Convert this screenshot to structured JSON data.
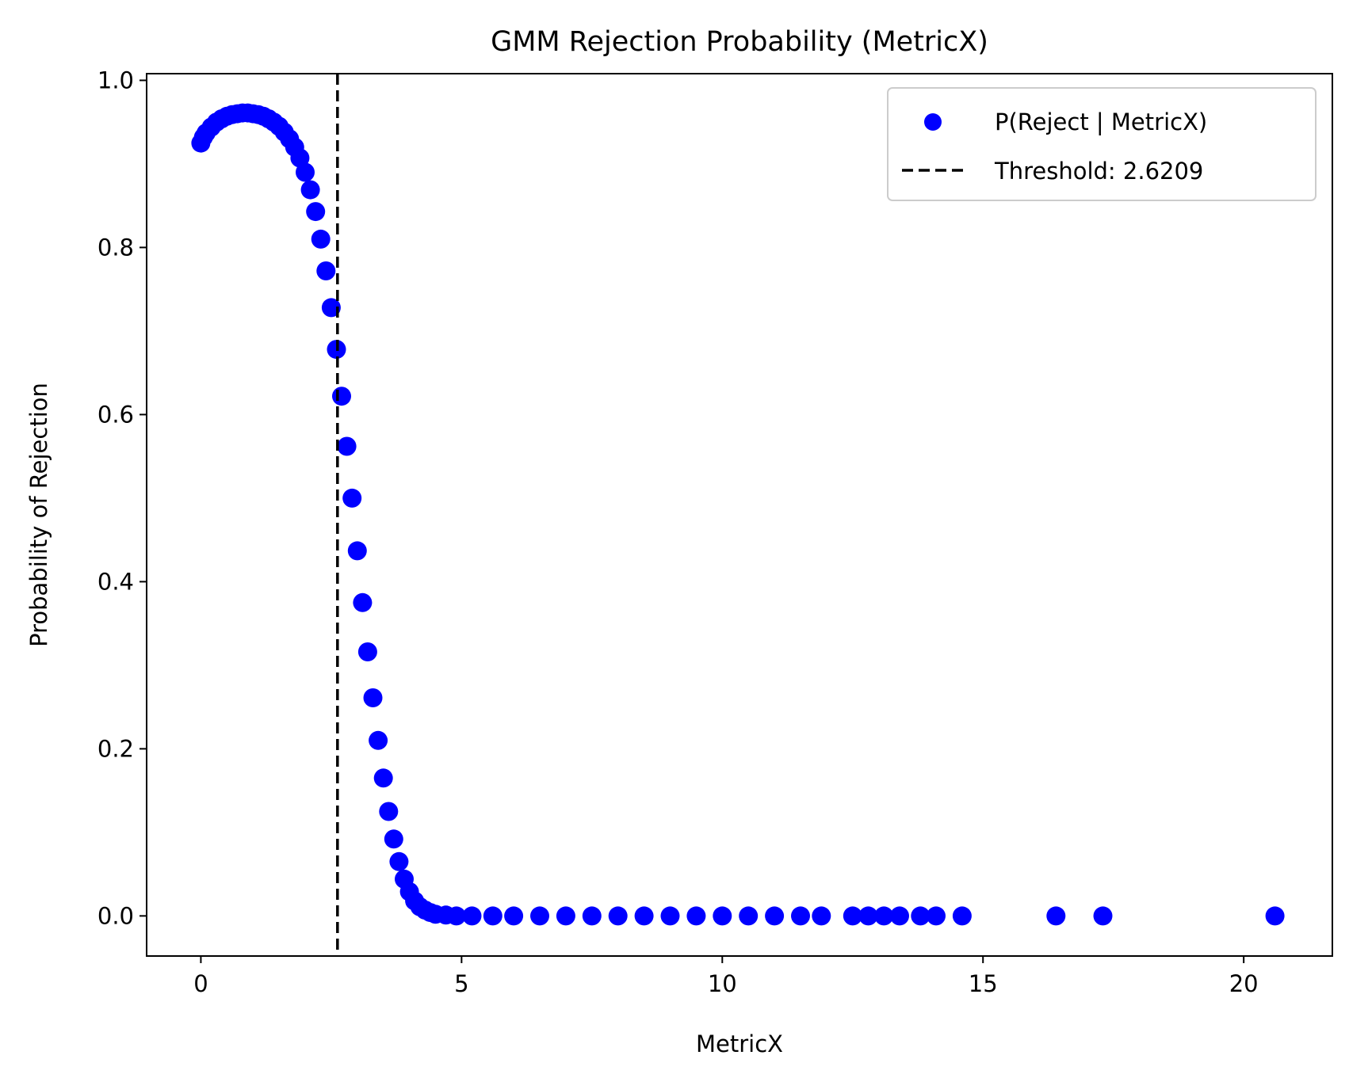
{
  "chart_data": {
    "type": "scatter",
    "title": "GMM Rejection Probability (MetricX)",
    "xlabel": "MetricX",
    "ylabel": "Probability of Rejection",
    "xlim": [
      -1.04,
      21.7
    ],
    "ylim": [
      -0.048,
      1.008
    ],
    "x_ticks": [
      0,
      5,
      10,
      15,
      20
    ],
    "x_tick_labels": [
      "0",
      "5",
      "10",
      "15",
      "20"
    ],
    "y_ticks": [
      0.0,
      0.2,
      0.4,
      0.6,
      0.8,
      1.0
    ],
    "y_tick_labels": [
      "0.0",
      "0.2",
      "0.4",
      "0.6",
      "0.8",
      "1.0"
    ],
    "grid": false,
    "legend_position": "top-right",
    "series": [
      {
        "name": "P(Reject | MetricX)",
        "kind": "scatter",
        "color": "#0000ff",
        "points": [
          [
            0.0,
            0.925
          ],
          [
            0.05,
            0.932
          ],
          [
            0.1,
            0.937
          ],
          [
            0.2,
            0.944
          ],
          [
            0.3,
            0.95
          ],
          [
            0.4,
            0.954
          ],
          [
            0.5,
            0.957
          ],
          [
            0.6,
            0.959
          ],
          [
            0.7,
            0.96
          ],
          [
            0.8,
            0.961
          ],
          [
            0.9,
            0.961
          ],
          [
            1.0,
            0.96
          ],
          [
            1.1,
            0.959
          ],
          [
            1.2,
            0.957
          ],
          [
            1.3,
            0.954
          ],
          [
            1.4,
            0.95
          ],
          [
            1.5,
            0.945
          ],
          [
            1.6,
            0.938
          ],
          [
            1.7,
            0.93
          ],
          [
            1.8,
            0.92
          ],
          [
            1.9,
            0.907
          ],
          [
            2.0,
            0.89
          ],
          [
            2.1,
            0.869
          ],
          [
            2.2,
            0.843
          ],
          [
            2.3,
            0.81
          ],
          [
            2.4,
            0.772
          ],
          [
            2.5,
            0.728
          ],
          [
            2.6,
            0.678
          ],
          [
            2.7,
            0.622
          ],
          [
            2.8,
            0.562
          ],
          [
            2.9,
            0.5
          ],
          [
            3.0,
            0.437
          ],
          [
            3.1,
            0.375
          ],
          [
            3.2,
            0.316
          ],
          [
            3.3,
            0.261
          ],
          [
            3.4,
            0.21
          ],
          [
            3.5,
            0.165
          ],
          [
            3.6,
            0.125
          ],
          [
            3.7,
            0.092
          ],
          [
            3.8,
            0.065
          ],
          [
            3.9,
            0.044
          ],
          [
            4.0,
            0.029
          ],
          [
            4.1,
            0.018
          ],
          [
            4.2,
            0.011
          ],
          [
            4.3,
            0.007
          ],
          [
            4.4,
            0.004
          ],
          [
            4.5,
            0.002
          ],
          [
            4.7,
            0.001
          ],
          [
            4.9,
            0.0
          ],
          [
            5.2,
            0.0
          ],
          [
            5.6,
            0.0
          ],
          [
            6.0,
            0.0
          ],
          [
            6.5,
            0.0
          ],
          [
            7.0,
            0.0
          ],
          [
            7.5,
            0.0
          ],
          [
            8.0,
            0.0
          ],
          [
            8.5,
            0.0
          ],
          [
            9.0,
            0.0
          ],
          [
            9.5,
            0.0
          ],
          [
            10.0,
            0.0
          ],
          [
            10.5,
            0.0
          ],
          [
            11.0,
            0.0
          ],
          [
            11.5,
            0.0
          ],
          [
            11.9,
            0.0
          ],
          [
            12.5,
            0.0
          ],
          [
            12.8,
            0.0
          ],
          [
            13.1,
            0.0
          ],
          [
            13.4,
            0.0
          ],
          [
            13.8,
            0.0
          ],
          [
            14.1,
            0.0
          ],
          [
            14.6,
            0.0
          ],
          [
            16.4,
            0.0
          ],
          [
            17.3,
            0.0
          ],
          [
            20.6,
            0.0
          ]
        ]
      },
      {
        "name": "Threshold: 2.6209",
        "kind": "vline",
        "x": 2.6209,
        "color": "#000000",
        "style": "dashed"
      }
    ]
  }
}
